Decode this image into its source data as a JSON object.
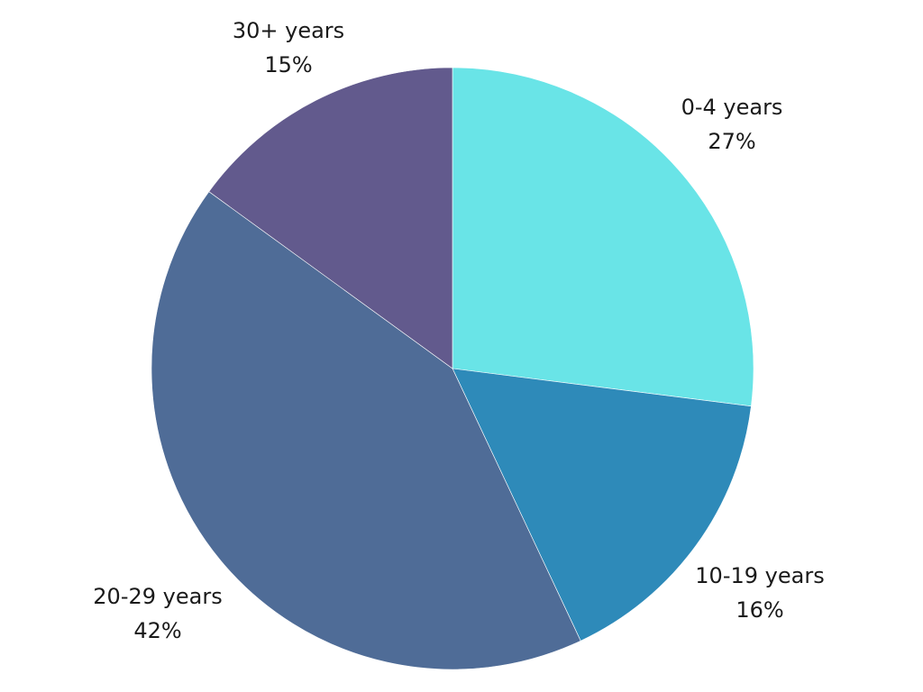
{
  "chart_data": {
    "type": "pie",
    "categories": [
      "0-4 years",
      "10-19 years",
      "20-29 years",
      "30+ years"
    ],
    "values": [
      27,
      16,
      42,
      15
    ],
    "value_labels": [
      "27%",
      "16%",
      "42%",
      "15%"
    ],
    "colors": [
      "#69E4E7",
      "#2E8AB9",
      "#4F6C97",
      "#625A8D"
    ],
    "start_angle": "top (12 o'clock)",
    "direction": "clockwise",
    "title": "",
    "legend": "none (labels placed outside slices)"
  }
}
